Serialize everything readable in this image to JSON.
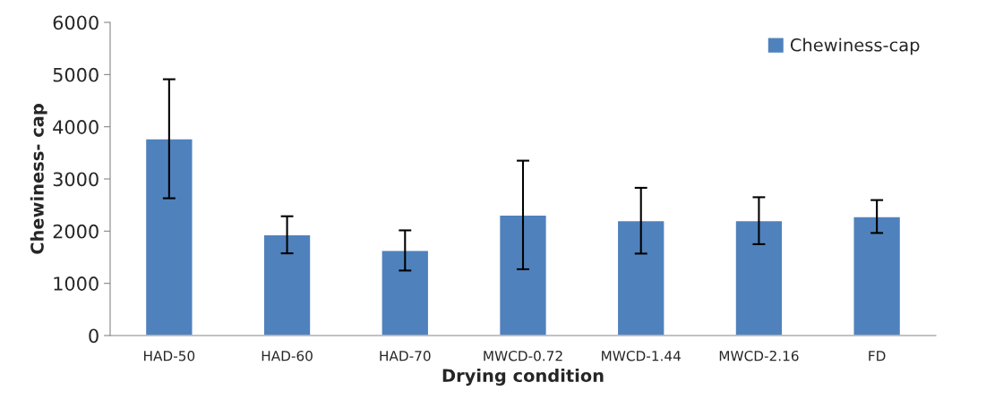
{
  "chart_data": {
    "type": "bar",
    "xlabel": "Drying condition",
    "ylabel": "Chewiness- cap",
    "categories": [
      "HAD-50",
      "HAD-60",
      "HAD-70",
      "MWCD-0.72",
      "MWCD-1.44",
      "MWCD-2.16",
      "FD"
    ],
    "series": [
      {
        "name": "Chewiness-cap",
        "color": "#4f81bd",
        "values": [
          3770,
          1930,
          1630,
          2310,
          2200,
          2200,
          2280
        ],
        "errors": [
          1140,
          355,
          385,
          1040,
          630,
          450,
          315
        ]
      }
    ],
    "ylim": [
      0,
      6000
    ],
    "yticks": [
      0,
      1000,
      2000,
      3000,
      4000,
      5000,
      6000
    ],
    "grid": false,
    "legend": "top right"
  }
}
